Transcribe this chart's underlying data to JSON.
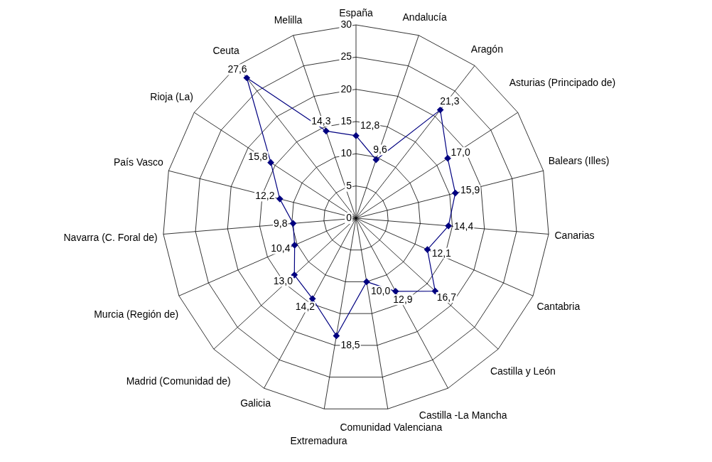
{
  "chart_data": {
    "type": "radar",
    "categories": [
      "España",
      "Andalucía",
      "Aragón",
      "Asturias (Principado de)",
      "Balears (Illes)",
      "Canarias",
      "Cantabria",
      "Castilla y León",
      "Castilla -La Mancha",
      "Comunidad Valenciana",
      "Extremadura",
      "Galicia",
      "Madrid (Comunidad de)",
      "Murcia (Región de)",
      "Navarra (C. Foral de)",
      "País Vasco",
      "Rioja (La)",
      "Ceuta",
      "Melilla"
    ],
    "series": [
      {
        "color": "#000080",
        "values": [
          12.8,
          9.6,
          21.3,
          17.0,
          15.9,
          14.4,
          12.1,
          16.7,
          12.9,
          10.0,
          18.5,
          14.2,
          13.0,
          10.4,
          9.8,
          12.2,
          15.8,
          27.6,
          14.3
        ],
        "value_labels": [
          "12,8",
          "9,6",
          "21,3",
          "17,0",
          "15,9",
          "14,4",
          "12,1",
          "16,7",
          "12,9",
          "10,0",
          "18,5",
          "14,2",
          "13,0",
          "10,4",
          "9,8",
          "12,2",
          "15,8",
          "27,6",
          "14,3"
        ]
      }
    ],
    "ylim": [
      0,
      30
    ],
    "yticks": [
      0,
      5,
      10,
      15,
      20,
      25,
      30
    ],
    "grid": true,
    "legend": false,
    "marker": "diamond",
    "line_style": "solid"
  }
}
